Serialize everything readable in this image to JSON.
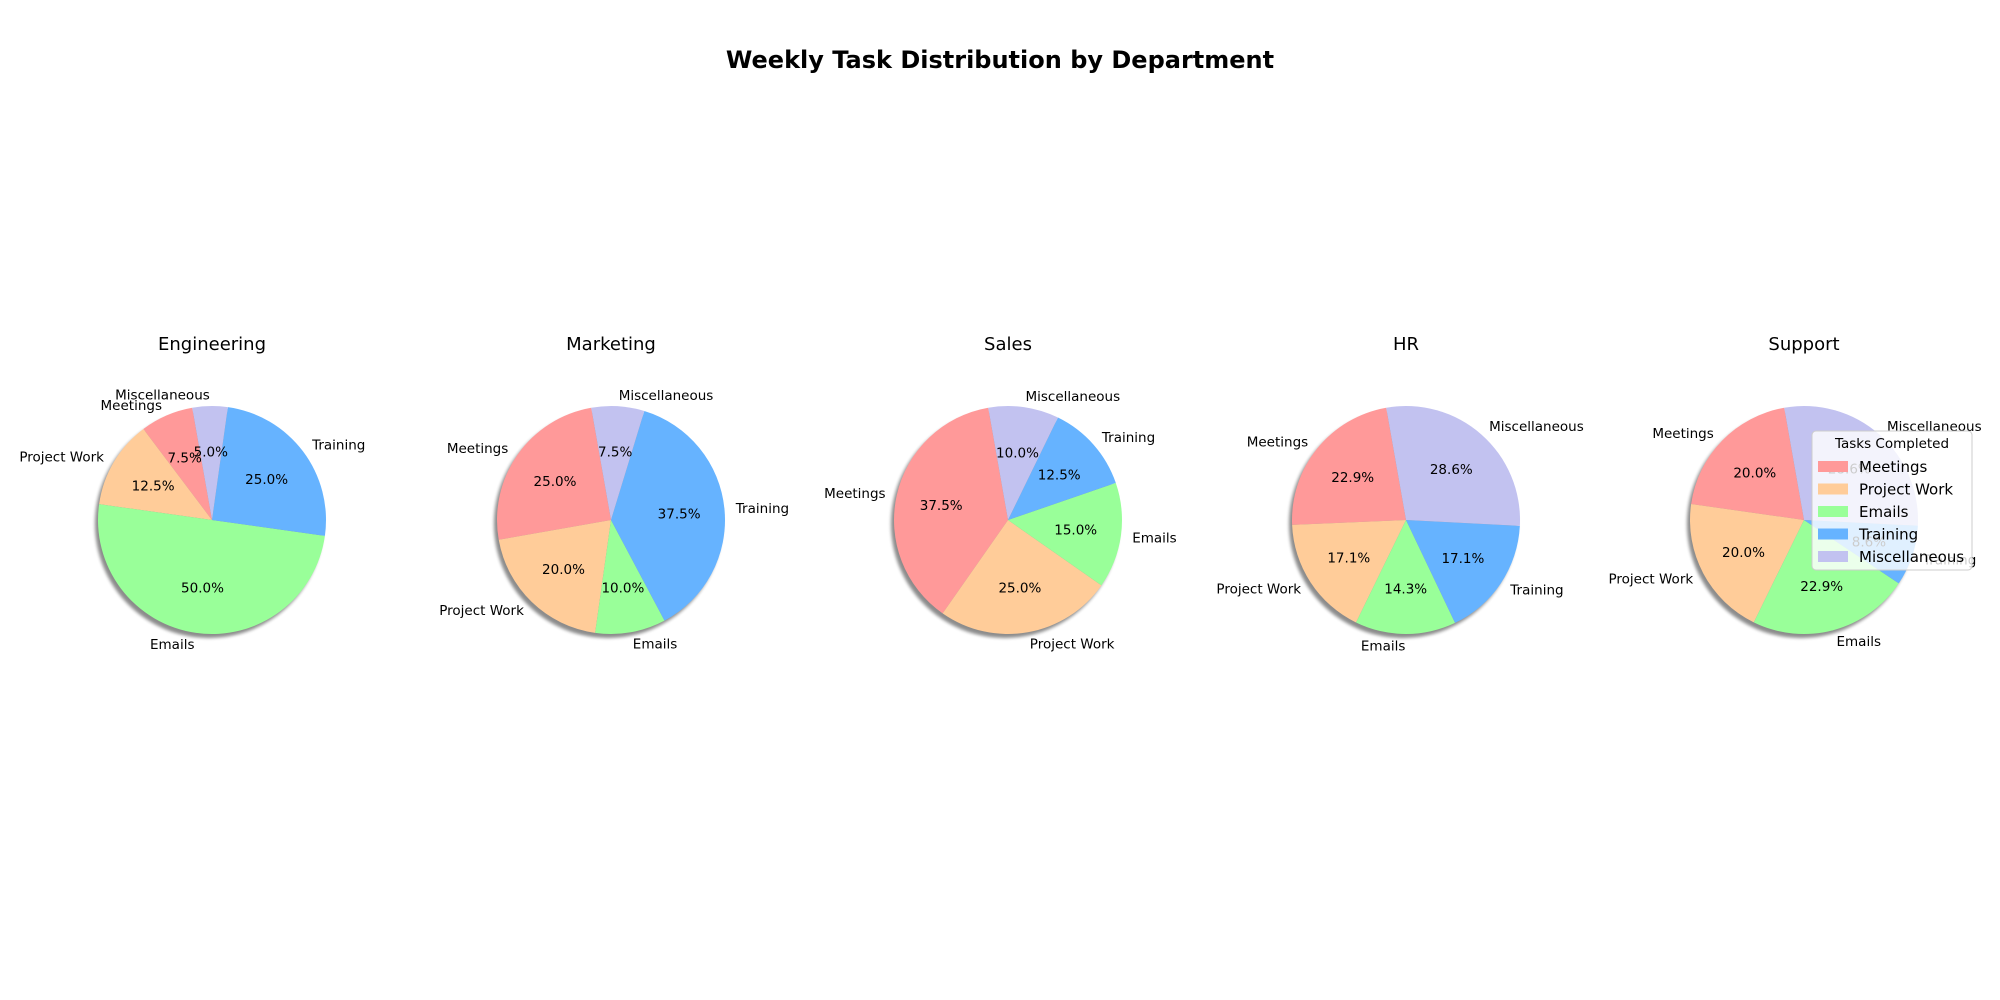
{
  "chart_data": {
    "type": "pie",
    "title": "Weekly Task Distribution by Department",
    "categories": [
      "Meetings",
      "Project Work",
      "Emails",
      "Training",
      "Miscellaneous"
    ],
    "colors": [
      "#ff9999",
      "#ffcc99",
      "#99ff99",
      "#66b3ff",
      "#c2c2f0"
    ],
    "start_angle_deg": 100,
    "shadow": true,
    "pies": [
      {
        "title": "Engineering",
        "values": [
          7.5,
          12.5,
          50.0,
          25.0,
          5.0
        ],
        "pct_labels": [
          "7.5%",
          "12.5%",
          "50.0%",
          "25.0%",
          "5.0%"
        ]
      },
      {
        "title": "Marketing",
        "values": [
          25.0,
          20.0,
          10.0,
          37.5,
          7.5
        ],
        "pct_labels": [
          "25.0%",
          "20.0%",
          "10.0%",
          "37.5%",
          "7.5%"
        ]
      },
      {
        "title": "Sales",
        "values": [
          37.5,
          25.0,
          15.0,
          12.5,
          10.0
        ],
        "pct_labels": [
          "37.5%",
          "25.0%",
          "15.0%",
          "12.5%",
          "10.0%"
        ]
      },
      {
        "title": "HR",
        "values": [
          22.9,
          17.1,
          14.3,
          17.1,
          28.6
        ],
        "pct_labels": [
          "22.9%",
          "17.1%",
          "14.3%",
          "17.1%",
          "28.6%"
        ]
      },
      {
        "title": "Support",
        "values": [
          20.0,
          20.0,
          22.9,
          8.6,
          28.6
        ],
        "pct_labels": [
          "20.0%",
          "20.0%",
          "22.9%",
          "8.6%",
          "28.6%"
        ]
      }
    ],
    "legend": {
      "title": "Tasks Completed",
      "entries": [
        "Meetings",
        "Project Work",
        "Emails",
        "Training",
        "Miscellaneous"
      ],
      "placement": "right, over last pie"
    }
  }
}
